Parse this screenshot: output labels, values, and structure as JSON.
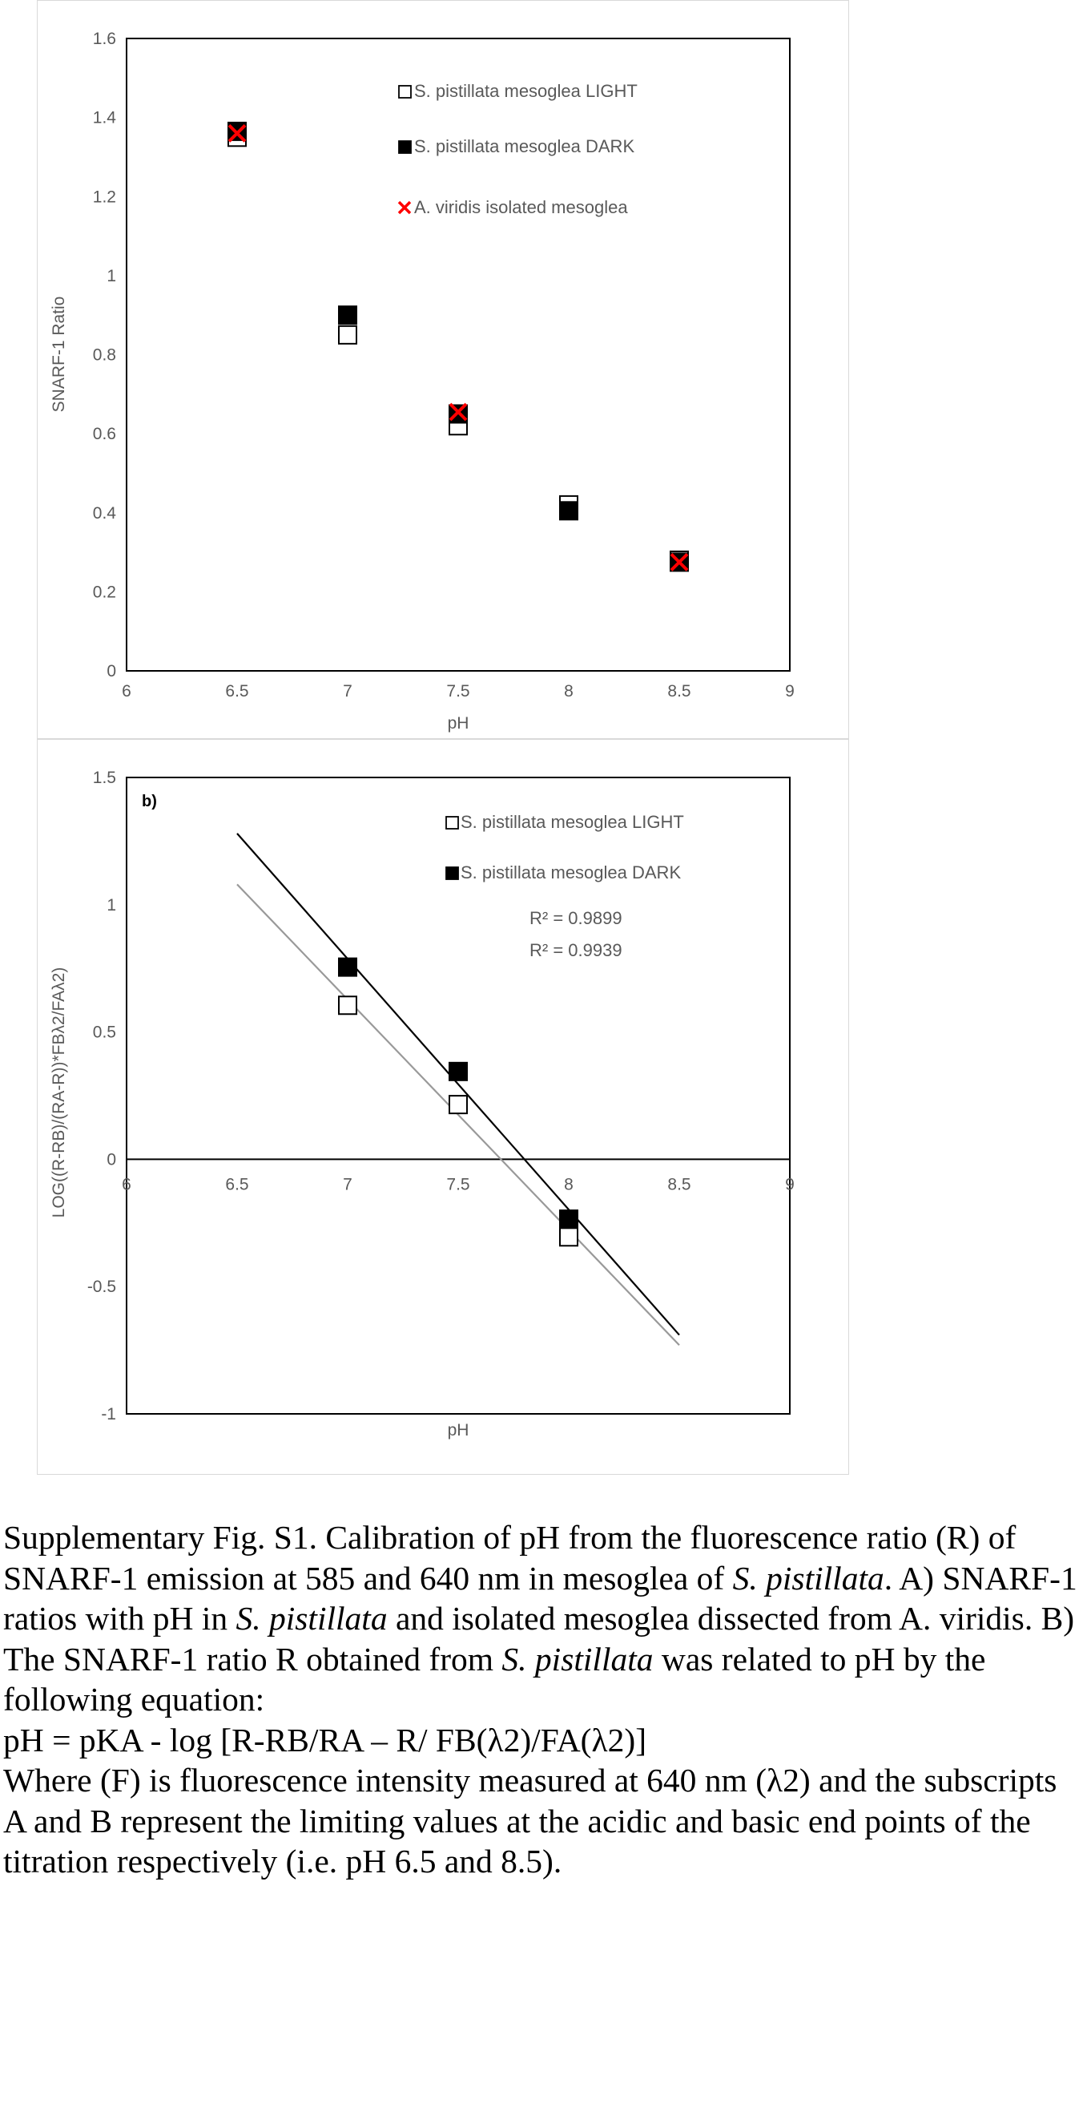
{
  "chart_data": [
    {
      "type": "scatter",
      "title": "",
      "xlabel": "pH",
      "ylabel": "SNARF-1 Ratio",
      "xlim": [
        6,
        9
      ],
      "ylim": [
        0,
        1.6
      ],
      "x_ticks": [
        "6",
        "6.5",
        "7",
        "7.5",
        "8",
        "8.5",
        "9"
      ],
      "y_ticks": [
        "0",
        "0.2",
        "0.4",
        "0.6",
        "0.8",
        "1",
        "1.2",
        "1.4",
        "1.6"
      ],
      "grid": false,
      "legend_position": "top-right",
      "series": [
        {
          "name": "S. pistillata mesoglea LIGHT",
          "marker": "open-square",
          "color": "#000000",
          "x": [
            6.5,
            7,
            7.5,
            8,
            8.5
          ],
          "y": [
            1.35,
            0.85,
            0.62,
            0.42,
            0.28
          ]
        },
        {
          "name": "S. pistillata mesoglea DARK",
          "marker": "filled-square",
          "color": "#000000",
          "x": [
            6.5,
            7,
            7.5,
            8,
            8.5
          ],
          "y": [
            1.365,
            0.9,
            0.65,
            0.405,
            0.275
          ]
        },
        {
          "name": "A. viridis isolated mesoglea",
          "marker": "x",
          "color": "#ff0000",
          "x": [
            6.5,
            7.5,
            8.5
          ],
          "y": [
            1.36,
            0.655,
            0.275
          ]
        }
      ]
    },
    {
      "type": "scatter",
      "title": "",
      "panel_label": "b)",
      "xlabel": "pH",
      "ylabel": "LOG((R-RB)/(RA-R))*FBλ2/FAλ2)",
      "xlim": [
        6,
        9
      ],
      "ylim": [
        -1,
        1.5
      ],
      "x_ticks": [
        "6",
        "6.5",
        "7",
        "7.5",
        "8",
        "8.5",
        "9"
      ],
      "y_ticks": [
        "-1",
        "-0.5",
        "0",
        "0.5",
        "1",
        "1.5"
      ],
      "grid": false,
      "legend_position": "top-right",
      "r2_labels": [
        "R² = 0.9899",
        "R² = 0.9939"
      ],
      "series": [
        {
          "name": "S. pistillata mesoglea LIGHT",
          "marker": "open-square",
          "color": "#000000",
          "x": [
            7,
            7.5,
            8
          ],
          "y": [
            0.605,
            0.215,
            -0.305
          ],
          "trendline": {
            "color": "#999999",
            "x": [
              6.5,
              8.5
            ],
            "y": [
              1.08,
              -0.73
            ]
          }
        },
        {
          "name": "S. pistillata mesoglea DARK",
          "marker": "filled-square",
          "color": "#000000",
          "x": [
            7,
            7.5,
            8
          ],
          "y": [
            0.755,
            0.345,
            -0.235
          ],
          "trendline": {
            "color": "#000000",
            "x": [
              6.5,
              8.5
            ],
            "y": [
              1.28,
              -0.69
            ]
          }
        }
      ]
    }
  ],
  "caption": {
    "p1_a": "Supplementary Fig. S1. Calibration of pH from the fluorescence ratio (R) of SNARF-1 emission at 585 and 640 nm in mesoglea of ",
    "p1_sp1": "S. pistillata",
    "p1_b": ". A) SNARF-1 ratios with pH in ",
    "p1_sp2": "S. pistillata",
    "p1_c": " and isolated mesoglea dissected from A. viridis. B) The SNARF-1 ratio R obtained from ",
    "p1_sp3": "S. pistillata",
    "p1_d": " was related to pH by the following equation:",
    "equation": "pH = pKA - log [R-RB/RA – R/ FB(λ2)/FA(λ2)]",
    "where": "Where (F) is fluorescence intensity measured at 640 nm (λ2) and the subscripts A and B represent the limiting values at the acidic and basic end points of the titration respectively (i.e. pH 6.5 and 8.5)."
  }
}
